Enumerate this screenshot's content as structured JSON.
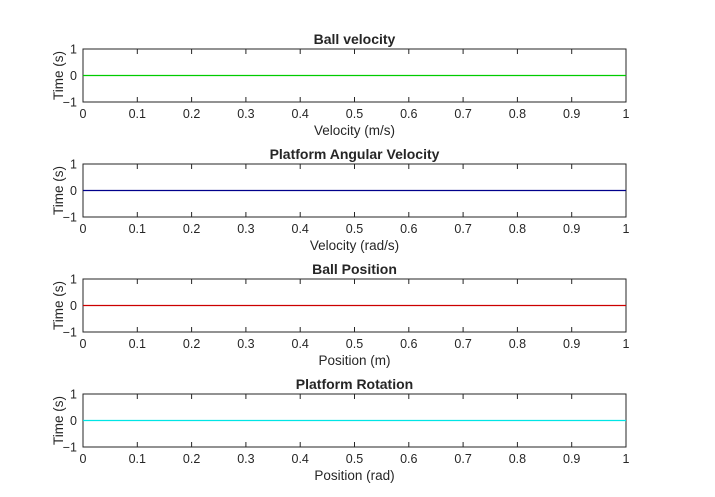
{
  "chart_data": [
    {
      "type": "line",
      "title": "Ball velocity",
      "xlabel": "Velocity (m/s)",
      "ylabel": "Time (s)",
      "xlim": [
        0,
        1
      ],
      "ylim": [
        -1,
        1
      ],
      "xticks": [
        "0",
        "0.1",
        "0.2",
        "0.3",
        "0.4",
        "0.5",
        "0.6",
        "0.7",
        "0.8",
        "0.9",
        "1"
      ],
      "yticks": [
        "1",
        "0",
        "−1"
      ],
      "grid": false,
      "series": [
        {
          "color": "#00cc00",
          "x": [
            0,
            1
          ],
          "y": [
            0,
            0
          ]
        }
      ]
    },
    {
      "type": "line",
      "title": "Platform Angular Velocity",
      "xlabel": "Velocity (rad/s)",
      "ylabel": "Time (s)",
      "xlim": [
        0,
        1
      ],
      "ylim": [
        -1,
        1
      ],
      "xticks": [
        "0",
        "0.1",
        "0.2",
        "0.3",
        "0.4",
        "0.5",
        "0.6",
        "0.7",
        "0.8",
        "0.9",
        "1"
      ],
      "yticks": [
        "1",
        "0",
        "−1"
      ],
      "grid": false,
      "series": [
        {
          "color": "#00008b",
          "x": [
            0,
            1
          ],
          "y": [
            0,
            0
          ]
        }
      ]
    },
    {
      "type": "line",
      "title": "Ball Position",
      "xlabel": "Position (m)",
      "ylabel": "Time (s)",
      "xlim": [
        0,
        1
      ],
      "ylim": [
        -1,
        1
      ],
      "xticks": [
        "0",
        "0.1",
        "0.2",
        "0.3",
        "0.4",
        "0.5",
        "0.6",
        "0.7",
        "0.8",
        "0.9",
        "1"
      ],
      "yticks": [
        "1",
        "0",
        "−1"
      ],
      "grid": false,
      "series": [
        {
          "color": "#cc0000",
          "x": [
            0,
            1
          ],
          "y": [
            0,
            0
          ]
        }
      ]
    },
    {
      "type": "line",
      "title": "Platform Rotation",
      "xlabel": "Position (rad)",
      "ylabel": "Time (s)",
      "xlim": [
        0,
        1
      ],
      "ylim": [
        -1,
        1
      ],
      "xticks": [
        "0",
        "0.1",
        "0.2",
        "0.3",
        "0.4",
        "0.5",
        "0.6",
        "0.7",
        "0.8",
        "0.9",
        "1"
      ],
      "yticks": [
        "1",
        "0",
        "−1"
      ],
      "grid": false,
      "series": [
        {
          "color": "#00e5e5",
          "x": [
            0,
            1
          ],
          "y": [
            0,
            0
          ]
        }
      ]
    }
  ]
}
